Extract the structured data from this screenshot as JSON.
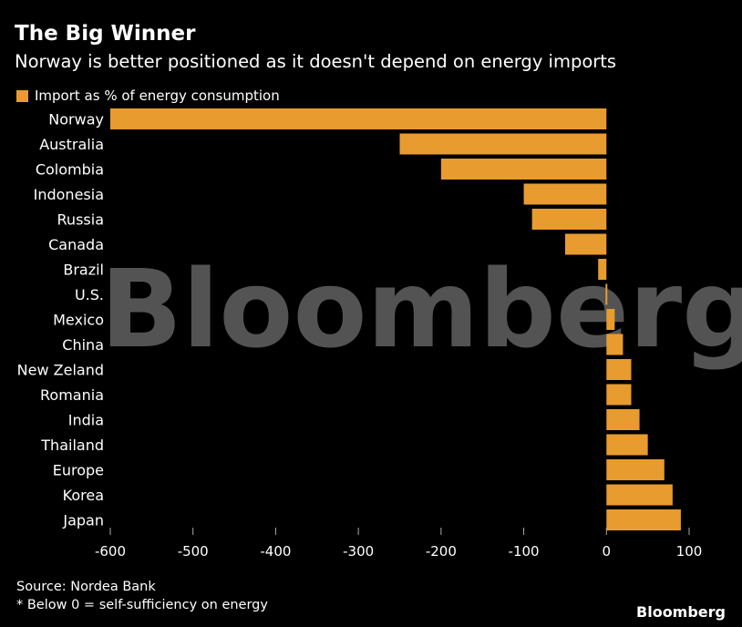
{
  "title": "The Big Winner",
  "subtitle": "Norway is better positioned as it doesn't depend on energy imports",
  "watermark": "Bloomberg",
  "footer": {
    "source": "Source: Nordea Bank",
    "note": "* Below 0 = self-sufficiency on energy",
    "brand": "Bloomberg"
  },
  "colors": {
    "bar": "#E89B2E",
    "background": "#000000",
    "text": "#FFFFFF"
  },
  "chart_data": {
    "type": "bar",
    "orientation": "horizontal",
    "title": "The Big Winner",
    "subtitle": "Norway is better positioned as it doesn't depend on energy imports",
    "legend": [
      "Import as % of energy consumption"
    ],
    "legend_position": "top-left",
    "categories": [
      "Norway",
      "Australia",
      "Colombia",
      "Indonesia",
      "Russia",
      "Canada",
      "Brazil",
      "U.S.",
      "Mexico",
      "China",
      "New Zeland",
      "Romania",
      "India",
      "Thailand",
      "Europe",
      "Korea",
      "Japan"
    ],
    "series": [
      {
        "name": "Import as % of energy consumption",
        "values": [
          -600,
          -250,
          -200,
          -100,
          -90,
          -50,
          -10,
          0,
          10,
          20,
          30,
          30,
          40,
          50,
          70,
          80,
          90
        ]
      }
    ],
    "xlim": [
      -600,
      100
    ],
    "xticks": [
      -600,
      -500,
      -400,
      -300,
      -200,
      -100,
      0,
      100
    ],
    "grid": false
  }
}
